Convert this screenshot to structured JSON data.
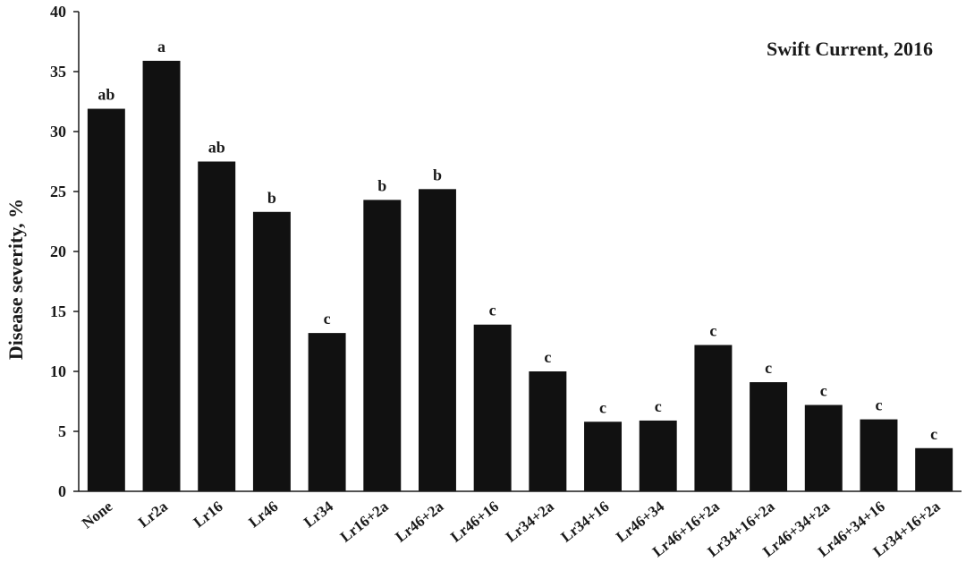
{
  "chart_data": {
    "type": "bar",
    "title": "",
    "annotation": "Swift Current, 2016",
    "xlabel": "",
    "ylabel": "Disease severity, %",
    "ylim": [
      0,
      40
    ],
    "yticks": [
      0,
      5,
      10,
      15,
      20,
      25,
      30,
      35,
      40
    ],
    "grid": false,
    "bar_color": "#111111",
    "categories": [
      "None",
      "Lr2a",
      "Lr16",
      "Lr46",
      "Lr34",
      "Lr16+2a",
      "Lr46+2a",
      "Lr46+16",
      "Lr34+2a",
      "Lr34+16",
      "Lr46+34",
      "Lr46+16+2a",
      "Lr34+16+2a",
      "Lr46+34+2a",
      "Lr46+34+16",
      "Lr34+16+2a"
    ],
    "values": [
      31.9,
      35.9,
      27.5,
      23.3,
      13.2,
      24.3,
      25.2,
      13.9,
      10.0,
      5.8,
      5.9,
      12.2,
      9.1,
      7.2,
      6.0,
      3.6
    ],
    "significance": [
      "ab",
      "a",
      "ab",
      "b",
      "c",
      "b",
      "b",
      "c",
      "c",
      "c",
      "c",
      "c",
      "c",
      "c",
      "c",
      "c"
    ]
  }
}
